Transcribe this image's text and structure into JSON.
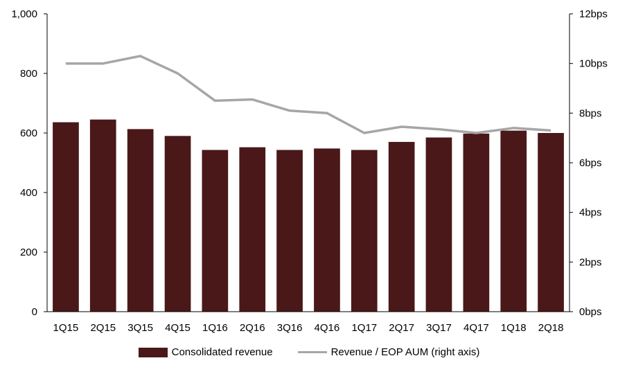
{
  "chart_data": {
    "type": "bar",
    "categories": [
      "1Q15",
      "2Q15",
      "3Q15",
      "4Q15",
      "1Q16",
      "2Q16",
      "3Q16",
      "4Q16",
      "1Q17",
      "2Q17",
      "3Q17",
      "4Q17",
      "1Q18",
      "2Q18"
    ],
    "series": [
      {
        "name": "Consolidated revenue",
        "type": "bar",
        "axis": "left",
        "color": "#4a1818",
        "values": [
          636,
          645,
          613,
          590,
          543,
          552,
          543,
          548,
          543,
          570,
          585,
          598,
          608,
          600
        ]
      },
      {
        "name": "Revenue / EOP AUM (right axis)",
        "type": "line",
        "axis": "right",
        "color": "#a6a6a6",
        "values": [
          10.0,
          10.0,
          10.3,
          9.6,
          8.5,
          8.55,
          8.1,
          8.0,
          7.2,
          7.45,
          7.35,
          7.2,
          7.4,
          7.3
        ]
      }
    ],
    "y_left": {
      "ylim": [
        0,
        1000
      ],
      "ticks": [
        0,
        200,
        400,
        600,
        800,
        1000
      ],
      "tick_labels": [
        "0",
        "200",
        "400",
        "600",
        "800",
        "1,000"
      ]
    },
    "y_right": {
      "ylim": [
        0,
        12
      ],
      "ticks": [
        0,
        2,
        4,
        6,
        8,
        10,
        12
      ],
      "tick_labels": [
        "0bps",
        "2bps",
        "4bps",
        "6bps",
        "8bps",
        "10bps",
        "12bps"
      ]
    },
    "grid": false,
    "legend_position": "bottom"
  }
}
